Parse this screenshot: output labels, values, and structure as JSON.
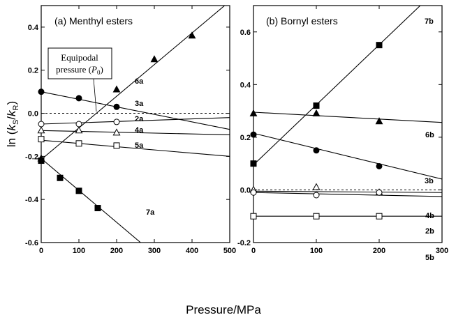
{
  "ylabel": "ln (kS/kR)",
  "ylabel_parts": {
    "prefix": "ln (",
    "k1": "k",
    "s1": "S",
    "slash": "/",
    "k2": "k",
    "s2": "R",
    "suffix": ")"
  },
  "xlabel": "Pressure/MPa",
  "chart_data": [
    {
      "type": "scatter",
      "panel": "a",
      "title": "(a) Menthyl esters",
      "xlim": [
        0,
        500
      ],
      "ylim": [
        -0.6,
        0.5
      ],
      "xticks": [
        "0",
        "100",
        "200",
        "300",
        "400",
        "500"
      ],
      "yticks": [
        "-0.6",
        "-0.4",
        "-0.2",
        "0.0",
        "0.2",
        "0.4"
      ],
      "ytick_values": [
        -0.6,
        -0.4,
        -0.2,
        0.0,
        0.2,
        0.4
      ],
      "xtick_values": [
        0,
        100,
        200,
        300,
        400,
        500
      ],
      "reference_line": {
        "y": 0.0,
        "style": "dashed"
      },
      "annotation": {
        "line1": "Equipodal",
        "line2_prefix": "pressure (",
        "line2_var": "P",
        "line2_sub": "0",
        "line2_suffix": ")"
      },
      "series": [
        {
          "name": "6a",
          "marker": "triangle",
          "filled": true,
          "x": [
            0,
            200,
            300,
            400
          ],
          "y": [
            -0.21,
            0.11,
            0.25,
            0.36
          ],
          "fit": [
            -0.215,
            0.00147
          ]
        },
        {
          "name": "3a",
          "marker": "circle",
          "filled": true,
          "x": [
            0,
            100,
            200
          ],
          "y": [
            0.1,
            0.07,
            0.03
          ],
          "fit": [
            0.1,
            -0.00035
          ]
        },
        {
          "name": "2a",
          "marker": "circle",
          "filled": false,
          "x": [
            0,
            100,
            200
          ],
          "y": [
            -0.05,
            -0.05,
            -0.04
          ],
          "fit": [
            -0.05,
            6e-05
          ]
        },
        {
          "name": "4a",
          "marker": "triangle",
          "filled": false,
          "x": [
            0,
            100,
            200
          ],
          "y": [
            -0.08,
            -0.08,
            -0.09
          ],
          "fit": [
            -0.08,
            -4e-05
          ]
        },
        {
          "name": "5a",
          "marker": "square",
          "filled": false,
          "x": [
            0,
            100,
            200
          ],
          "y": [
            -0.12,
            -0.14,
            -0.15
          ],
          "fit": [
            -0.125,
            -0.00015
          ]
        },
        {
          "name": "7a",
          "marker": "square",
          "filled": true,
          "x": [
            0,
            50,
            100,
            150
          ],
          "y": [
            -0.22,
            -0.3,
            -0.36,
            -0.44
          ],
          "fit": [
            -0.21,
            -0.00148
          ]
        }
      ]
    },
    {
      "type": "scatter",
      "panel": "b",
      "title": "(b) Bornyl esters",
      "xlim": [
        0,
        300
      ],
      "ylim": [
        -0.2,
        0.7
      ],
      "xticks": [
        "0",
        "100",
        "200",
        "300"
      ],
      "yticks": [
        "-0.2",
        "0.0",
        "0.2",
        "0.4",
        "0.6"
      ],
      "ytick_values": [
        -0.2,
        0.0,
        0.2,
        0.4,
        0.6
      ],
      "xtick_values": [
        0,
        100,
        200,
        300
      ],
      "reference_line": {
        "y": 0.0,
        "style": "dashed"
      },
      "series": [
        {
          "name": "7b",
          "marker": "square",
          "filled": true,
          "x": [
            0,
            100,
            200
          ],
          "y": [
            0.1,
            0.32,
            0.55
          ],
          "fit": [
            0.095,
            0.00228
          ]
        },
        {
          "name": "6b",
          "marker": "triangle",
          "filled": true,
          "x": [
            0,
            100,
            200
          ],
          "y": [
            0.29,
            0.29,
            0.26
          ],
          "fit": [
            0.295,
            -0.00013
          ]
        },
        {
          "name": "3b",
          "marker": "circle",
          "filled": true,
          "x": [
            0,
            100,
            200
          ],
          "y": [
            0.21,
            0.15,
            0.09
          ],
          "fit": [
            0.215,
            -0.00058
          ]
        },
        {
          "name": "4b",
          "marker": "triangle",
          "filled": false,
          "x": [
            0,
            100,
            200
          ],
          "y": [
            0.0,
            0.01,
            -0.01
          ],
          "fit": [
            -0.005,
            -1.7e-05
          ]
        },
        {
          "name": "2b",
          "marker": "circle",
          "filled": false,
          "x": [
            0,
            100,
            200
          ],
          "y": [
            -0.01,
            -0.02,
            -0.01
          ],
          "fit": [
            -0.01,
            -5e-05
          ]
        },
        {
          "name": "5b",
          "marker": "square",
          "filled": false,
          "x": [
            0,
            100,
            200
          ],
          "y": [
            -0.1,
            -0.1,
            -0.1
          ],
          "fit": [
            -0.1,
            0.0
          ]
        }
      ]
    }
  ]
}
